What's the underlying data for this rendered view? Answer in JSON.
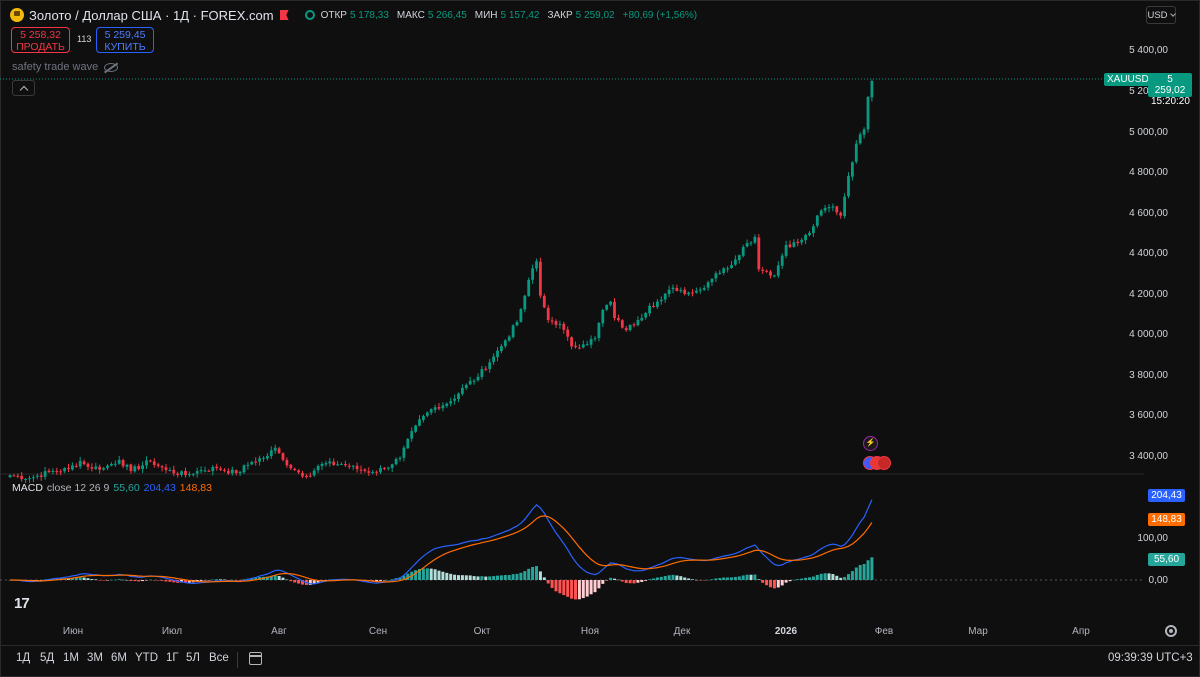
{
  "header": {
    "title": "Золото / Доллар США · 1Д · FOREX.com",
    "ohlc": [
      {
        "label": "ОТКР",
        "value": "5 178,33"
      },
      {
        "label": "МАКС",
        "value": "5 266,45"
      },
      {
        "label": "МИН",
        "value": "5 157,42"
      },
      {
        "label": "ЗАКР",
        "value": "5 259,02"
      }
    ],
    "change": "+80,69 (+1,56%)",
    "currency": "USD"
  },
  "trade": {
    "sell_price": "5 258,32",
    "sell_label": "ПРОДАТЬ",
    "spread": "113",
    "buy_price": "5 259,45",
    "buy_label": "КУПИТЬ"
  },
  "indicator_name": "safety trade wave",
  "price_axis": [
    "5 400,00",
    "5 200,00",
    "5 000,00",
    "4 800,00",
    "4 600,00",
    "4 400,00",
    "4 200,00",
    "4 000,00",
    "3 800,00",
    "3 600,00",
    "3 400,00"
  ],
  "last": {
    "symbol": "XAUUSD",
    "price": "5 259,02",
    "countdown": "15:20:20"
  },
  "macd": {
    "title": "MACD",
    "params": "close 12 26 9",
    "hist": "55,60",
    "macd": "204,43",
    "signal": "148,83",
    "axis_100": "100,00",
    "axis_0": "0,00"
  },
  "time_axis": [
    {
      "label": "Июн",
      "bold": false
    },
    {
      "label": "Июл",
      "bold": false
    },
    {
      "label": "Авг",
      "bold": false
    },
    {
      "label": "Сен",
      "bold": false
    },
    {
      "label": "Окт",
      "bold": false
    },
    {
      "label": "Ноя",
      "bold": false
    },
    {
      "label": "Дек",
      "bold": false
    },
    {
      "label": "2026",
      "bold": true
    },
    {
      "label": "Фев",
      "bold": false
    },
    {
      "label": "Мар",
      "bold": false
    },
    {
      "label": "Апр",
      "bold": false
    }
  ],
  "ranges": [
    "1Д",
    "5Д",
    "1М",
    "3М",
    "6М",
    "YTD",
    "1Г",
    "5Л",
    "Все"
  ],
  "clock": "09:39:39 UTC+3",
  "colors": {
    "up": "#089981",
    "down": "#f23645",
    "macd": "#2962ff",
    "signal": "#ff6d00",
    "bg": "#0f0f0f"
  },
  "chart_data": {
    "type": "candlestick",
    "interval": "1D",
    "ylim": [
      3270,
      5480
    ],
    "anchors": [
      [
        0,
        3315
      ],
      [
        5,
        3300
      ],
      [
        10,
        3330
      ],
      [
        15,
        3345
      ],
      [
        18,
        3385
      ],
      [
        20,
        3355
      ],
      [
        24,
        3350
      ],
      [
        28,
        3390
      ],
      [
        31,
        3335
      ],
      [
        36,
        3385
      ],
      [
        40,
        3340
      ],
      [
        45,
        3315
      ],
      [
        49,
        3340
      ],
      [
        53,
        3350
      ],
      [
        58,
        3325
      ],
      [
        62,
        3380
      ],
      [
        66,
        3410
      ],
      [
        68,
        3450
      ],
      [
        70,
        3390
      ],
      [
        73,
        3340
      ],
      [
        76,
        3310
      ],
      [
        80,
        3370
      ],
      [
        85,
        3370
      ],
      [
        90,
        3340
      ],
      [
        93,
        3330
      ],
      [
        96,
        3350
      ],
      [
        100,
        3400
      ],
      [
        104,
        3560
      ],
      [
        108,
        3640
      ],
      [
        113,
        3680
      ],
      [
        117,
        3760
      ],
      [
        120,
        3800
      ],
      [
        124,
        3900
      ],
      [
        127,
        3980
      ],
      [
        130,
        4070
      ],
      [
        132,
        4200
      ],
      [
        134,
        4335
      ],
      [
        135,
        4370
      ],
      [
        136,
        4200
      ],
      [
        138,
        4080
      ],
      [
        141,
        4060
      ],
      [
        144,
        3950
      ],
      [
        147,
        3960
      ],
      [
        150,
        3990
      ],
      [
        152,
        4130
      ],
      [
        154,
        4170
      ],
      [
        155,
        4090
      ],
      [
        158,
        4030
      ],
      [
        161,
        4080
      ],
      [
        164,
        4150
      ],
      [
        167,
        4180
      ],
      [
        170,
        4240
      ],
      [
        174,
        4215
      ],
      [
        177,
        4230
      ],
      [
        181,
        4310
      ],
      [
        184,
        4335
      ],
      [
        188,
        4440
      ],
      [
        191,
        4490
      ],
      [
        192,
        4330
      ],
      [
        194,
        4320
      ],
      [
        196,
        4300
      ],
      [
        199,
        4450
      ],
      [
        202,
        4460
      ],
      [
        205,
        4510
      ],
      [
        208,
        4620
      ],
      [
        211,
        4640
      ],
      [
        213,
        4595
      ],
      [
        215,
        4790
      ],
      [
        217,
        4950
      ],
      [
        219,
        5020
      ],
      [
        220,
        5180
      ],
      [
        221,
        5259
      ]
    ],
    "last_candle": {
      "open": 5178.33,
      "high": 5266.45,
      "low": 5157.42,
      "close": 5259.02
    },
    "macd_params": [
      12,
      26,
      9
    ],
    "macd_last": {
      "hist": 55.6,
      "macd": 204.43,
      "signal": 148.83
    },
    "macd_ylim": [
      -25,
      215
    ]
  }
}
